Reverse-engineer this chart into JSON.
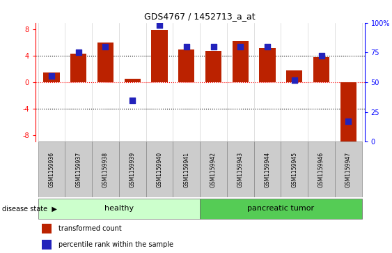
{
  "title": "GDS4767 / 1452713_a_at",
  "samples": [
    "GSM1159936",
    "GSM1159937",
    "GSM1159938",
    "GSM1159939",
    "GSM1159940",
    "GSM1159941",
    "GSM1159942",
    "GSM1159943",
    "GSM1159944",
    "GSM1159945",
    "GSM1159946",
    "GSM1159947"
  ],
  "transformed_count": [
    1.5,
    4.3,
    6.0,
    0.5,
    7.9,
    5.0,
    4.7,
    6.2,
    5.2,
    1.8,
    3.8,
    -9.0
  ],
  "percentile_rank": [
    55,
    75,
    80,
    35,
    98,
    80,
    80,
    80,
    80,
    52,
    72,
    17
  ],
  "groups": [
    {
      "label": "healthy",
      "indices": [
        0,
        1,
        2,
        3,
        4,
        5
      ],
      "color": "#ccffcc"
    },
    {
      "label": "pancreatic tumor",
      "indices": [
        6,
        7,
        8,
        9,
        10,
        11
      ],
      "color": "#55cc55"
    }
  ],
  "ylim_left": [
    -9,
    9
  ],
  "ylim_right": [
    0,
    100
  ],
  "yticks_left": [
    -8,
    -4,
    0,
    4,
    8
  ],
  "yticks_right": [
    0,
    25,
    50,
    75,
    100
  ],
  "ytick_labels_right": [
    "0",
    "25",
    "50",
    "75",
    "100%"
  ],
  "bar_color": "#bb2200",
  "dot_color": "#2222bb",
  "bar_width": 0.6,
  "dot_size": 40,
  "healthy_color": "#ccffcc",
  "tumor_color": "#55cc55",
  "disease_label": "disease state",
  "legend_items": [
    {
      "color": "#bb2200",
      "label": "transformed count"
    },
    {
      "color": "#2222bb",
      "label": "percentile rank within the sample"
    }
  ]
}
